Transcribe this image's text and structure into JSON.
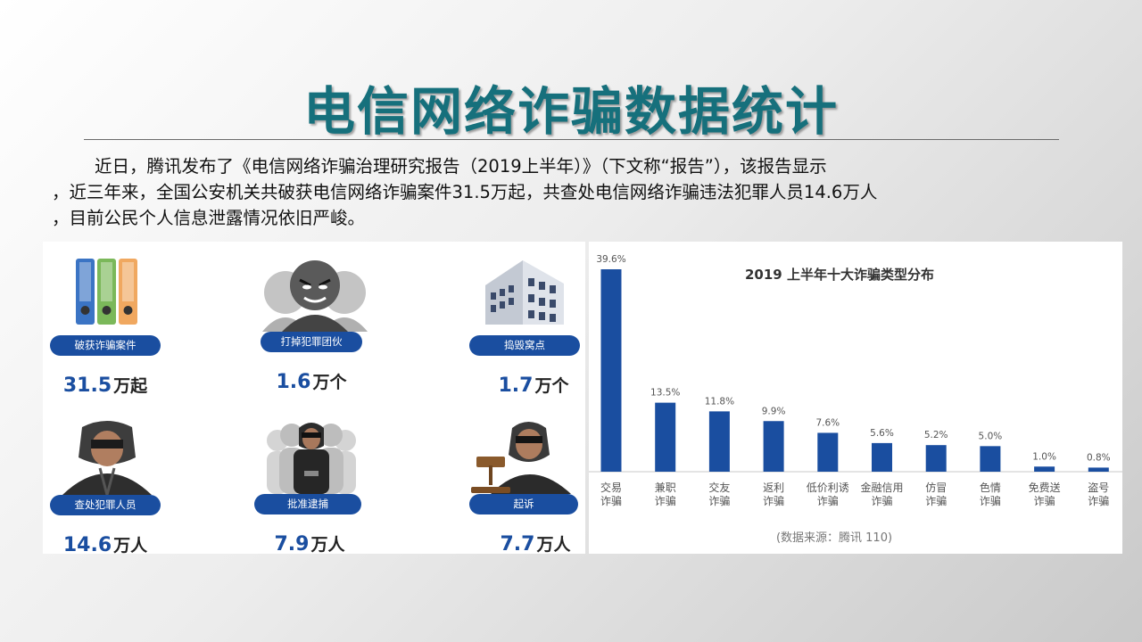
{
  "slide": {
    "title": "电信网络诈骗数据统计",
    "intro_lines": [
      "近日，腾讯发布了《电信网络诈骗治理研究报告（2019上半年）》（下文称“报告”），该报告显示",
      "，近三年来，全国公安机关共破获电信网络诈骗案件31.5万起，共查处电信网络诈骗违法犯罪人员14.6万人",
      "，目前公民个人信息泄露情况依旧严峻。"
    ]
  },
  "stats": [
    {
      "label": "破获诈骗案件",
      "value": "31.5",
      "unit": "万起",
      "icon": "binders-icon"
    },
    {
      "label": "打掉犯罪团伙",
      "value": "1.6",
      "unit": "万个",
      "icon": "gang-icon"
    },
    {
      "label": "捣毁窝点",
      "value": "1.7",
      "unit": "万个",
      "icon": "building-icon"
    },
    {
      "label": "查处犯罪人员",
      "value": "14.6",
      "unit": "万人",
      "icon": "hooded-person-icon"
    },
    {
      "label": "批准逮捕",
      "value": "7.9",
      "unit": "万人",
      "icon": "handcuffed-person-icon"
    },
    {
      "label": "起诉",
      "value": "7.7",
      "unit": "万人",
      "icon": "gavel-person-icon"
    }
  ],
  "colors": {
    "accent": "#1a4ea0",
    "title": "#16707c"
  },
  "chart_data": {
    "type": "bar",
    "title": "2019 上半年十大诈骗类型分布",
    "source": "(数据来源：腾讯 110)",
    "categories": [
      [
        "交易",
        "诈骗"
      ],
      [
        "兼职",
        "诈骗"
      ],
      [
        "交友",
        "诈骗"
      ],
      [
        "返利",
        "诈骗"
      ],
      [
        "低价利诱",
        "诈骗"
      ],
      [
        "金融信用",
        "诈骗"
      ],
      [
        "仿冒",
        "诈骗"
      ],
      [
        "色情",
        "诈骗"
      ],
      [
        "免费送",
        "诈骗"
      ],
      [
        "盗号",
        "诈骗"
      ]
    ],
    "values": [
      39.6,
      13.5,
      11.8,
      9.9,
      7.6,
      5.6,
      5.2,
      5.0,
      1.0,
      0.8
    ],
    "value_labels": [
      "39.6%",
      "13.5%",
      "11.8%",
      "9.9%",
      "7.6%",
      "5.6%",
      "5.2%",
      "5.0%",
      "1.0%",
      "0.8%"
    ],
    "ylim": [
      0,
      39.6
    ],
    "color": "#1a4ea0",
    "grid": false
  }
}
